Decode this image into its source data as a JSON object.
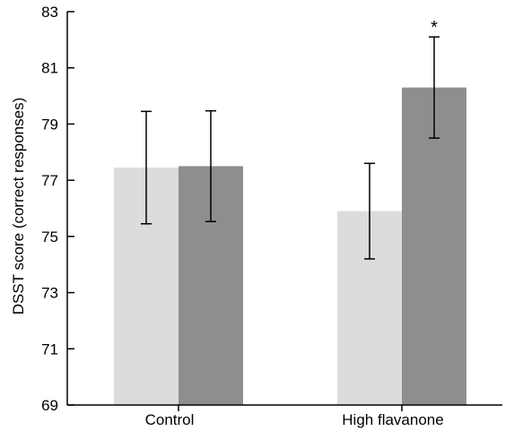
{
  "chart_data": {
    "type": "bar",
    "categories": [
      "Control",
      "High flavanone"
    ],
    "series": [
      {
        "color": "#dcdcdc",
        "values": [
          77.45,
          75.9
        ],
        "error": [
          2.0,
          1.7
        ]
      },
      {
        "color": "#8c8e90",
        "values": [
          77.5,
          80.3
        ],
        "error": [
          1.97,
          1.8
        ]
      }
    ],
    "ylabel": "DSST score (correct responses)",
    "xlabel": "",
    "ylim": [
      69,
      83
    ],
    "yticks": [
      69,
      71,
      73,
      75,
      77,
      79,
      81,
      83
    ],
    "annotations": [
      {
        "category": "High flavanone",
        "series_index": 1,
        "text": "*"
      }
    ],
    "grid": false,
    "legend": "none"
  }
}
